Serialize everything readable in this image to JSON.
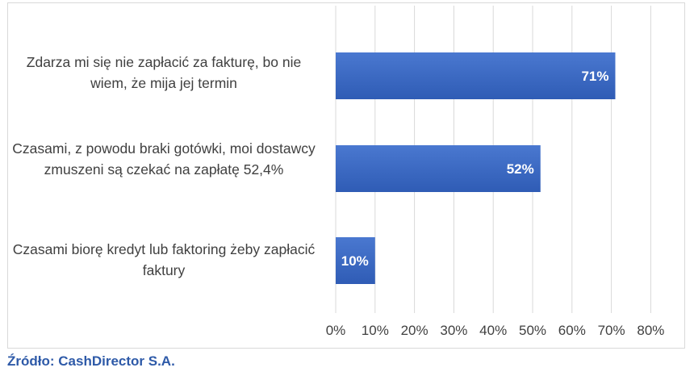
{
  "chart_data": {
    "type": "bar",
    "orientation": "horizontal",
    "categories": [
      "Zdarza mi się nie zapłacić za fakturę, bo nie wiem, że mija jej termin",
      "Czasami, z powodu braki gotówki, moi dostawcy zmuszeni są czekać na zapłatę 52,4%",
      "Czasami biorę kredyt lub faktoring żeby zapłacić faktury"
    ],
    "values": [
      71,
      52,
      10
    ],
    "data_labels": [
      "71%",
      "52%",
      "10%"
    ],
    "xlim": [
      0,
      80
    ],
    "x_ticks": [
      "0%",
      "10%",
      "20%",
      "30%",
      "40%",
      "50%",
      "60%",
      "70%",
      "80%"
    ],
    "grid": true,
    "legend": "none",
    "colors": {
      "bar_top": "#4a78d0",
      "bar_bottom": "#2f5cb5",
      "gridline": "#d9d9d9",
      "label_text": "#ffffff"
    }
  },
  "source_text": "Źródło: CashDirector S.A."
}
